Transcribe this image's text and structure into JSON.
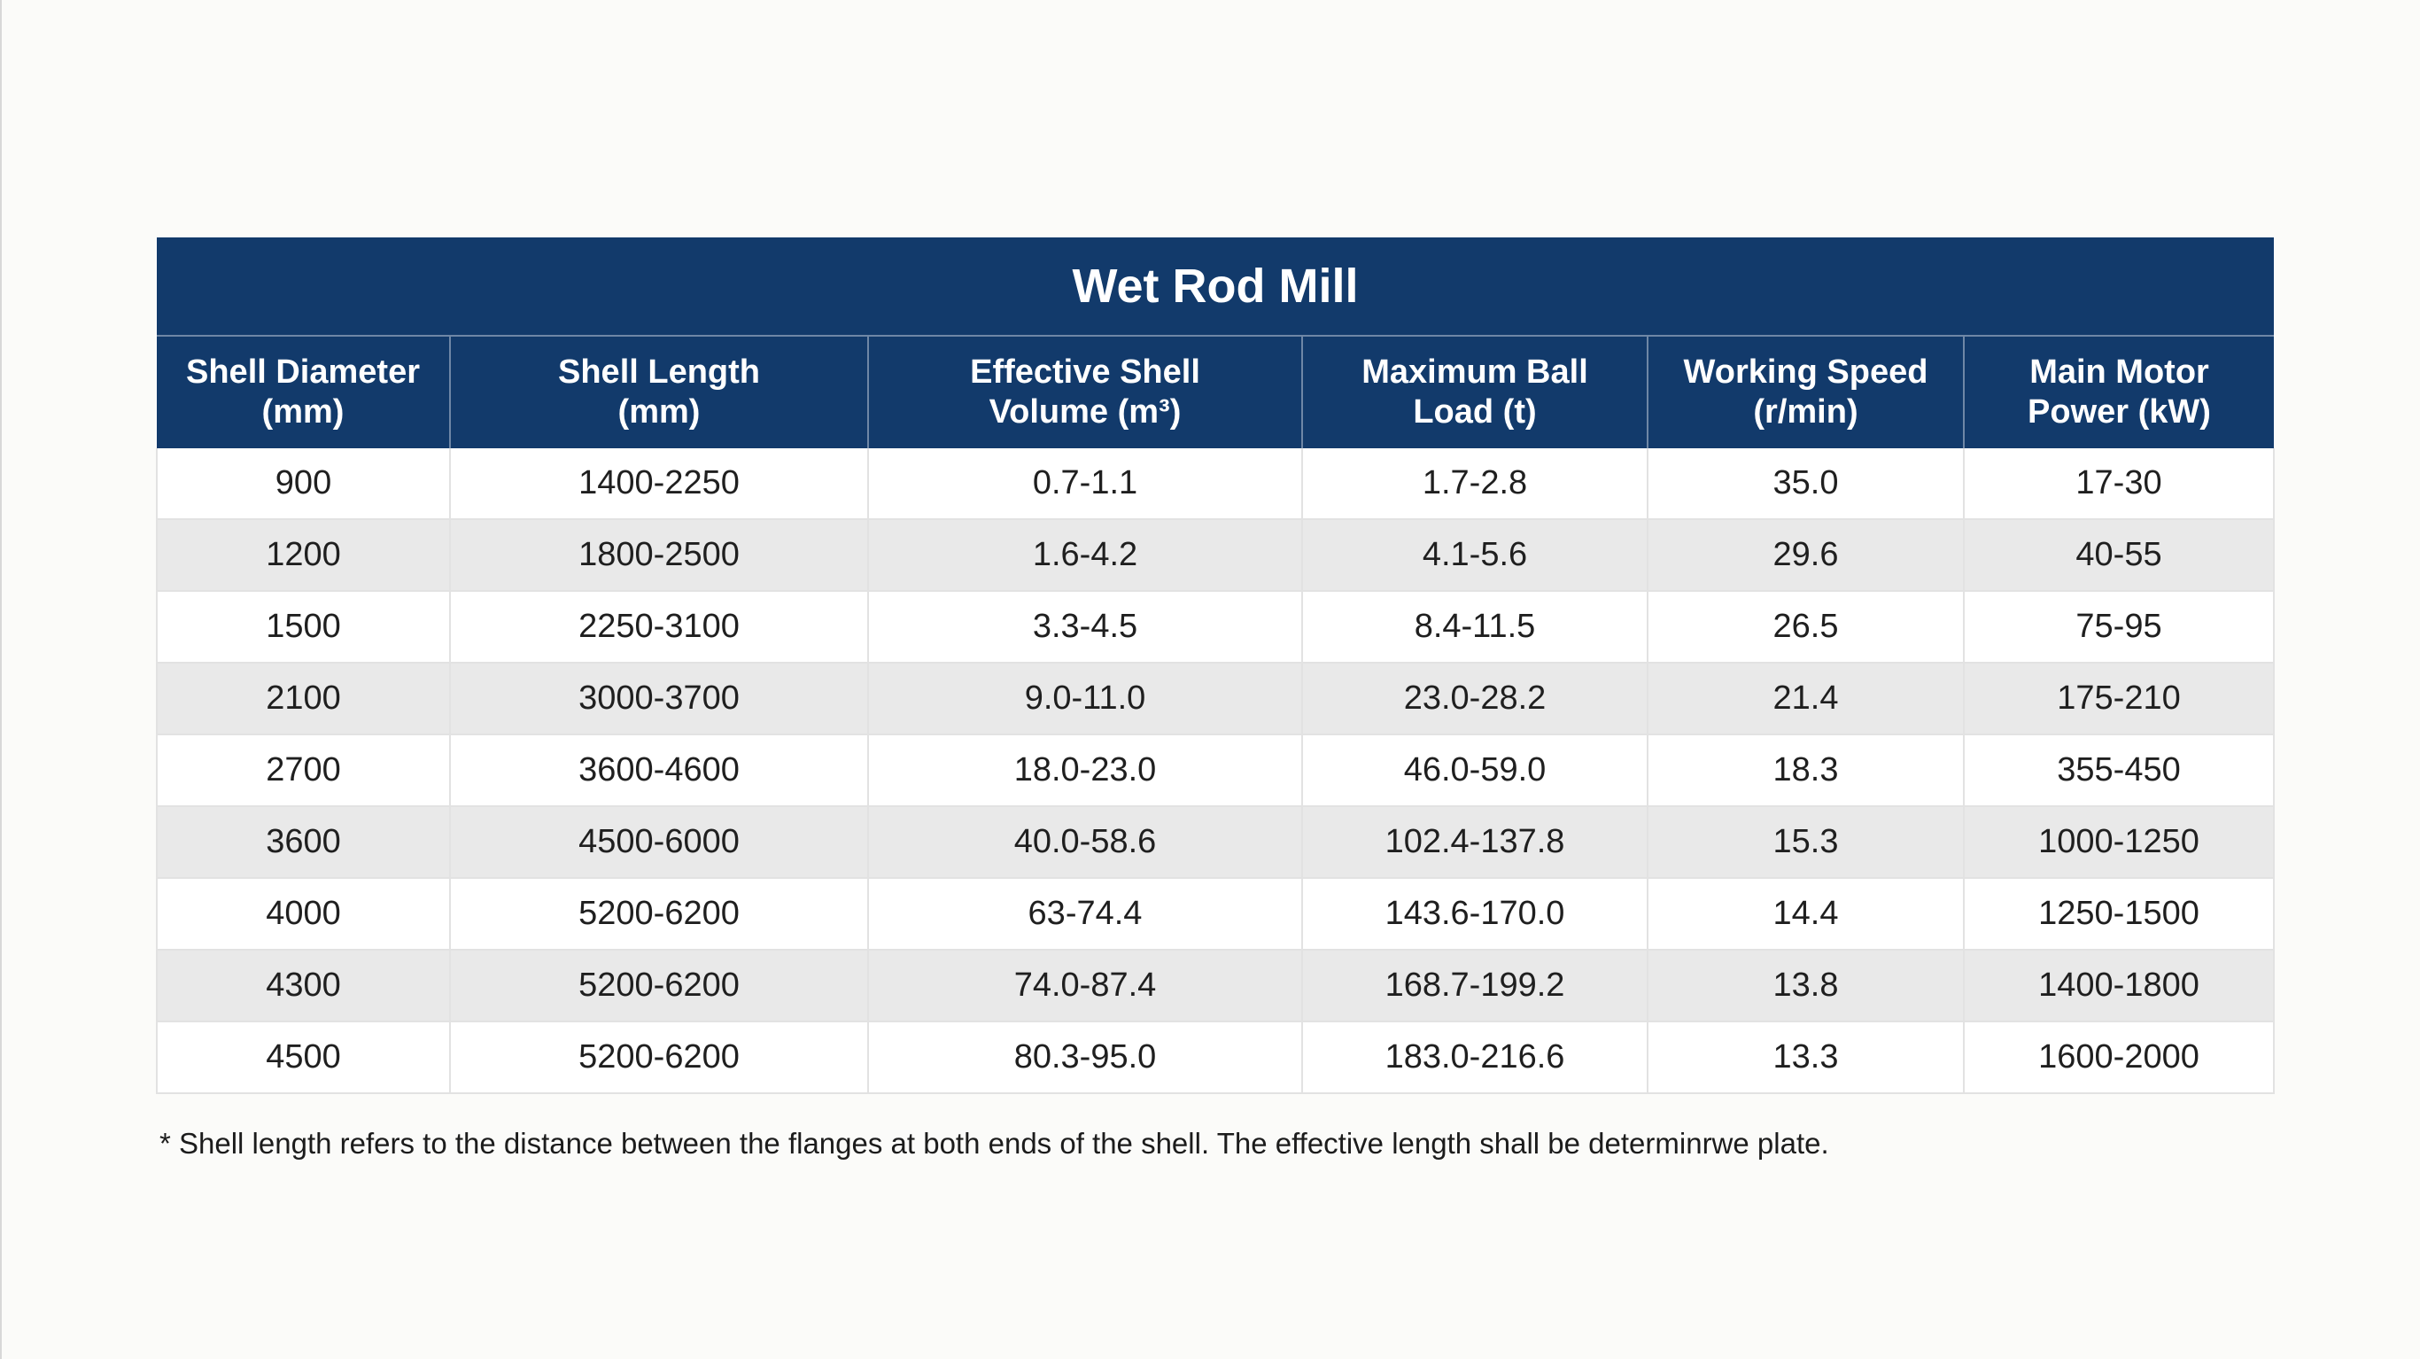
{
  "title": "Wet Rod Mill",
  "headers": [
    {
      "line1": "Shell Diameter",
      "line2": "(mm)"
    },
    {
      "line1": "Shell Length",
      "line2": "(mm)"
    },
    {
      "line1": "Effective Shell",
      "line2": "Volume (m³)"
    },
    {
      "line1": "Maximum Ball",
      "line2": "Load (t)"
    },
    {
      "line1": "Working Speed",
      "line2": "(r/min)"
    },
    {
      "line1": "Main Motor",
      "line2": "Power (kW)"
    }
  ],
  "rows": [
    [
      "900",
      "1400-2250",
      "0.7-1.1",
      "1.7-2.8",
      "35.0",
      "17-30"
    ],
    [
      "1200",
      "1800-2500",
      "1.6-4.2",
      "4.1-5.6",
      "29.6",
      "40-55"
    ],
    [
      "1500",
      "2250-3100",
      "3.3-4.5",
      "8.4-11.5",
      "26.5",
      "75-95"
    ],
    [
      "2100",
      "3000-3700",
      "9.0-11.0",
      "23.0-28.2",
      "21.4",
      "175-210"
    ],
    [
      "2700",
      "3600-4600",
      "18.0-23.0",
      "46.0-59.0",
      "18.3",
      "355-450"
    ],
    [
      "3600",
      "4500-6000",
      "40.0-58.6",
      "102.4-137.8",
      "15.3",
      "1000-1250"
    ],
    [
      "4000",
      "5200-6200",
      "63-74.4",
      "143.6-170.0",
      "14.4",
      "1250-1500"
    ],
    [
      "4300",
      "5200-6200",
      "74.0-87.4",
      "168.7-199.2",
      "13.8",
      "1400-1800"
    ],
    [
      "4500",
      "5200-6200",
      "80.3-95.0",
      "183.0-216.6",
      "13.3",
      "1600-2000"
    ]
  ],
  "footnote": "* Shell length refers to the distance between the flanges at both ends of the shell. The effective length shall be determinrwe plate.",
  "colors": {
    "header_bg": "#123a6b",
    "header_text": "#ffffff",
    "row_alt_bg": "#e9e9e9",
    "row_bg": "#ffffff"
  }
}
